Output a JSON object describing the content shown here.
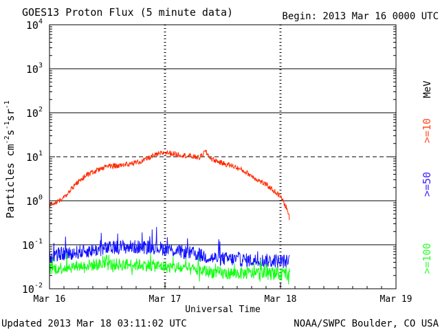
{
  "chart_data": {
    "type": "line",
    "title": "GOES13 Proton Flux (5 minute data)",
    "begin_label": "Begin: 2013 Mar 16 0000 UTC",
    "xlabel": "Universal Time",
    "ylabel_parts": [
      "Particles cm",
      "-2",
      "s",
      "-1",
      "sr",
      "-1"
    ],
    "updated": "Updated 2013 Mar 18 03:11:02 UTC",
    "credit": "NOAA/SWPC Boulder, CO USA",
    "x_ticks": [
      {
        "day": 0,
        "label": "Mar 16"
      },
      {
        "day": 1,
        "label": "Mar 17"
      },
      {
        "day": 2,
        "label": "Mar 18"
      },
      {
        "day": 3,
        "label": "Mar 19"
      }
    ],
    "xlim": [
      0,
      3
    ],
    "ylim_exponent": [
      -2,
      4
    ],
    "y_ticks": [
      {
        "exp": -2,
        "base": "10",
        "sup": "-2"
      },
      {
        "exp": -1,
        "base": "10",
        "sup": "-1"
      },
      {
        "exp": 0,
        "base": "10",
        "sup": "0"
      },
      {
        "exp": 1,
        "base": "10",
        "sup": "1"
      },
      {
        "exp": 2,
        "base": "10",
        "sup": "2"
      },
      {
        "exp": 3,
        "base": "10",
        "sup": "3"
      },
      {
        "exp": 4,
        "base": "10",
        "sup": "4"
      }
    ],
    "threshold_exp": 1,
    "units_label": "MeV",
    "series": [
      {
        "name": ">=10",
        "color": "#ff2a00",
        "label_color": "#ff4a20",
        "points": [
          [
            0.0,
            -0.1
          ],
          [
            0.05,
            -0.05
          ],
          [
            0.12,
            0.05
          ],
          [
            0.2,
            0.3
          ],
          [
            0.3,
            0.55
          ],
          [
            0.4,
            0.68
          ],
          [
            0.5,
            0.78
          ],
          [
            0.6,
            0.8
          ],
          [
            0.7,
            0.84
          ],
          [
            0.8,
            0.9
          ],
          [
            0.9,
            1.02
          ],
          [
            1.0,
            1.1
          ],
          [
            1.1,
            1.06
          ],
          [
            1.2,
            1.02
          ],
          [
            1.3,
            0.98
          ],
          [
            1.35,
            1.12
          ],
          [
            1.4,
            0.95
          ],
          [
            1.5,
            0.85
          ],
          [
            1.6,
            0.78
          ],
          [
            1.7,
            0.65
          ],
          [
            1.8,
            0.48
          ],
          [
            1.9,
            0.32
          ],
          [
            2.0,
            0.1
          ],
          [
            2.05,
            -0.15
          ],
          [
            2.08,
            -0.4
          ]
        ]
      },
      {
        "name": ">=50",
        "color": "#1010ff",
        "label_color": "#3a20ff",
        "points": [
          [
            0.0,
            -1.25
          ],
          [
            0.3,
            -1.15
          ],
          [
            0.6,
            -1.05
          ],
          [
            0.9,
            -1.05
          ],
          [
            1.2,
            -1.18
          ],
          [
            1.4,
            -1.3
          ],
          [
            1.7,
            -1.35
          ],
          [
            2.08,
            -1.38
          ]
        ]
      },
      {
        "name": ">=100",
        "color": "#10ff10",
        "label_color": "#30ff30",
        "points": [
          [
            0.0,
            -1.55
          ],
          [
            0.4,
            -1.45
          ],
          [
            0.8,
            -1.45
          ],
          [
            1.2,
            -1.55
          ],
          [
            1.5,
            -1.65
          ],
          [
            1.8,
            -1.65
          ],
          [
            2.08,
            -1.68
          ]
        ]
      }
    ]
  }
}
